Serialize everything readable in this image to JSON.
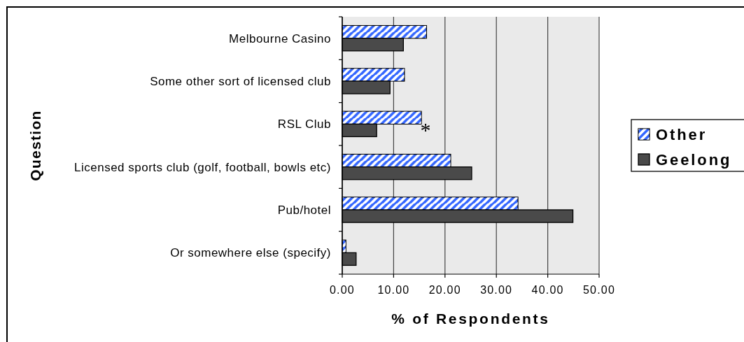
{
  "chart_data": {
    "type": "bar",
    "orientation": "horizontal",
    "categories": [
      "Melbourne Casino",
      "Some other sort of licensed club",
      "RSL Club",
      "Licensed sports club (golf, football, bowls etc)",
      "Pub/hotel",
      "Or somewhere else (specify)"
    ],
    "series": [
      {
        "name": "Other",
        "color": "#3366ff",
        "values": [
          16.4,
          12.1,
          15.4,
          21.1,
          34.2,
          0.7
        ]
      },
      {
        "name": "Geelong",
        "color": "#4a4a4a",
        "values": [
          11.9,
          9.3,
          6.7,
          25.2,
          44.9,
          2.7
        ]
      }
    ],
    "xlim": [
      0,
      50
    ],
    "xticks": [
      {
        "value": 0,
        "label": "0.00"
      },
      {
        "value": 10,
        "label": "10.00"
      },
      {
        "value": 20,
        "label": "20.00"
      },
      {
        "value": 30,
        "label": "30.00"
      },
      {
        "value": 40,
        "label": "40.00"
      },
      {
        "value": 50,
        "label": "50.00"
      }
    ],
    "xlabel": "% of Respondents",
    "ylabel": "Question",
    "grid": "x",
    "legend": "right",
    "annotations": [
      {
        "text": "*",
        "x": 15.4,
        "y": "RSL Club"
      }
    ]
  }
}
